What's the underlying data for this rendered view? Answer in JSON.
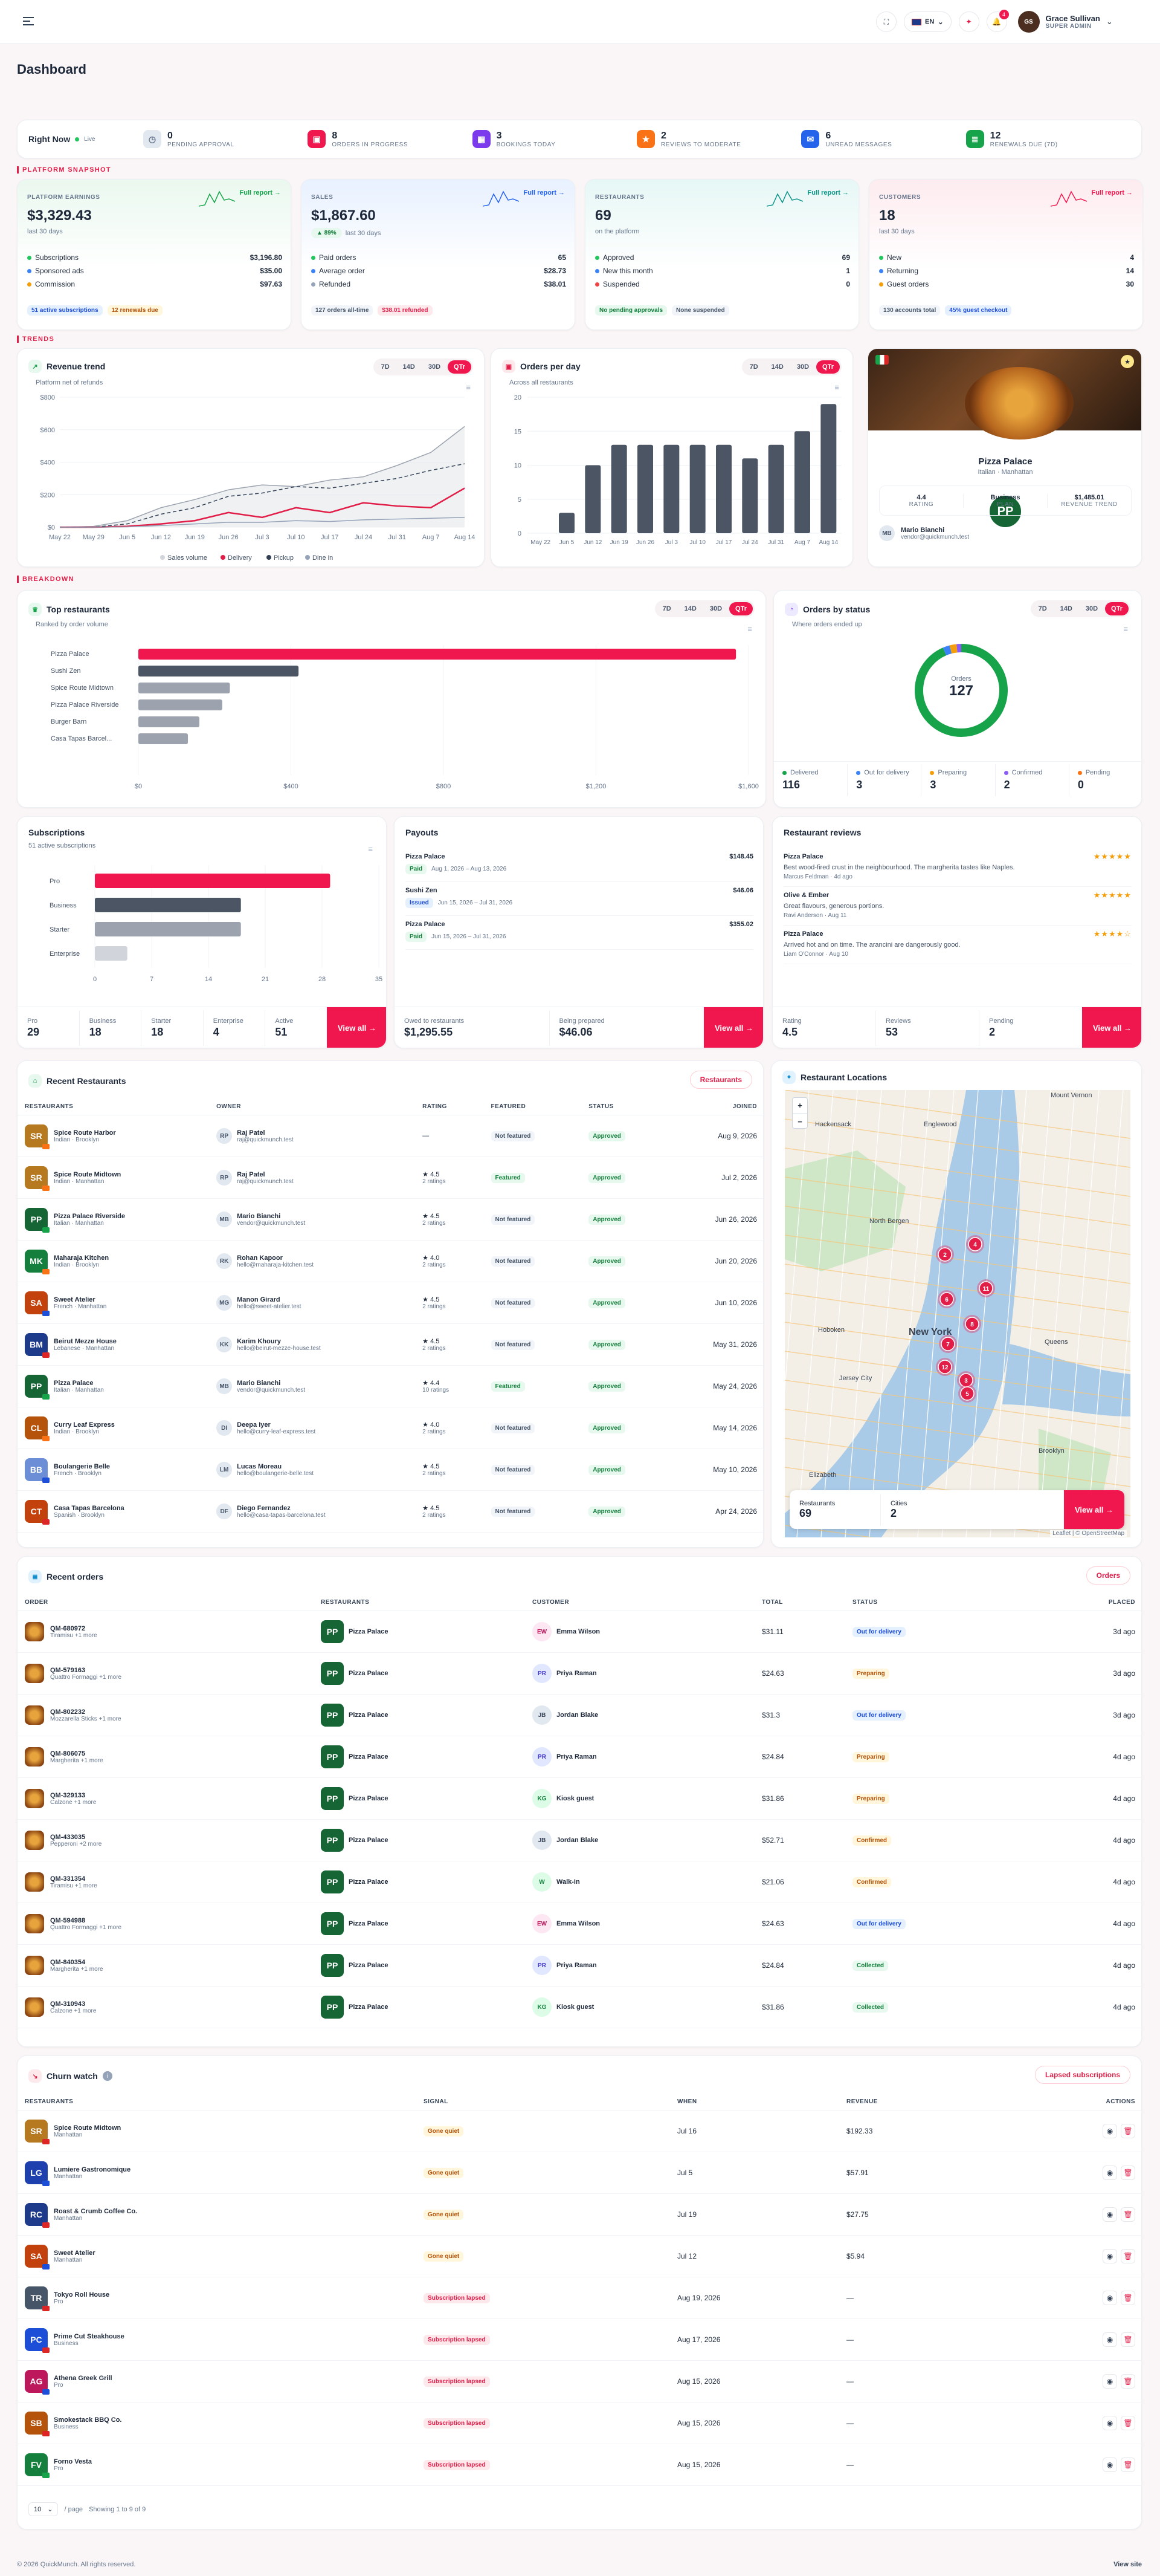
{
  "header": {
    "lang": "EN",
    "notif_count": "4",
    "user_name": "Grace Sullivan",
    "user_role": "SUPER ADMIN"
  },
  "page_title": "Dashboard",
  "right_now": {
    "label": "Right Now",
    "live": "Live",
    "items": [
      {
        "count": "0",
        "label": "PENDING APPROVAL",
        "color": "#e2e8f0",
        "icon": "clock-icon"
      },
      {
        "count": "8",
        "label": "ORDERS IN PROGRESS",
        "color": "#f0174e",
        "icon": "bag-icon"
      },
      {
        "count": "3",
        "label": "BOOKINGS TODAY",
        "color": "#7c3aed",
        "icon": "calendar-icon"
      },
      {
        "count": "2",
        "label": "REVIEWS TO MODERATE",
        "color": "#f97316",
        "icon": "star-icon"
      },
      {
        "count": "6",
        "label": "UNREAD MESSAGES",
        "color": "#2563eb",
        "icon": "message-icon"
      },
      {
        "count": "12",
        "label": "RENEWALS DUE (7D)",
        "color": "#16a34a",
        "icon": "receipt-icon"
      }
    ]
  },
  "sections": {
    "snapshot": "PLATFORM SNAPSHOT",
    "trends": "TRENDS",
    "breakdown": "BREAKDOWN"
  },
  "snapshot": [
    {
      "label": "PLATFORM EARNINGS",
      "value": "$3,329.43",
      "sub": "last 30 days",
      "link": "Full report →",
      "rows": [
        [
          "Subscriptions",
          "$3,196.80",
          "#22c55e"
        ],
        [
          "Sponsored ads",
          "$35.00",
          "#3b82f6"
        ],
        [
          "Commission",
          "$97.63",
          "#f59e0b"
        ]
      ],
      "chips": [
        "51 active subscriptions",
        "12 renewals due"
      ],
      "color": "#16a34a"
    },
    {
      "label": "SALES",
      "value": "$1,867.60",
      "delta": "▲ 89%",
      "sub": "last 30 days",
      "link": "Full report →",
      "rows": [
        [
          "Paid orders",
          "65",
          "#22c55e"
        ],
        [
          "Average order",
          "$28.73",
          "#3b82f6"
        ],
        [
          "Refunded",
          "$38.01",
          "#94a3b8"
        ]
      ],
      "chips": [
        "127 orders all-time",
        "$38.01 refunded"
      ],
      "color": "#2563eb"
    },
    {
      "label": "RESTAURANTS",
      "value": "69",
      "sub": "on the platform",
      "link": "Full report →",
      "rows": [
        [
          "Approved",
          "69",
          "#22c55e"
        ],
        [
          "New this month",
          "1",
          "#3b82f6"
        ],
        [
          "Suspended",
          "0",
          "#ef4444"
        ]
      ],
      "chips": [
        "No pending approvals",
        "None suspended"
      ],
      "color": "#0d9488"
    },
    {
      "label": "CUSTOMERS",
      "value": "18",
      "sub": "last 30 days",
      "link": "Full report →",
      "rows": [
        [
          "New",
          "4",
          "#22c55e"
        ],
        [
          "Returning",
          "14",
          "#3b82f6"
        ],
        [
          "Guest orders",
          "30",
          "#f59e0b"
        ]
      ],
      "chips": [
        "130 accounts total",
        "45% guest checkout"
      ],
      "color": "#f0174e"
    }
  ],
  "revenue": {
    "title": "Revenue trend",
    "sub": "Platform net of refunds",
    "tabs": [
      "7D",
      "14D",
      "30D",
      "QTr"
    ]
  },
  "orders_day": {
    "title": "Orders per day",
    "sub": "Across all restaurants",
    "tabs": [
      "7D",
      "14D",
      "30D",
      "QTr"
    ]
  },
  "chart_data": [
    {
      "type": "line",
      "title": "Revenue trend",
      "x": [
        "May 22",
        "May 29",
        "Jun 5",
        "Jun 12",
        "Jun 19",
        "Jun 26",
        "Jul 3",
        "Jul 10",
        "Jul 17",
        "Jul 24",
        "Jul 31",
        "Aug 7",
        "Aug 14"
      ],
      "yticks": [
        "$0",
        "$200",
        "$400",
        "$600",
        "$800"
      ],
      "ylim": [
        0,
        800
      ],
      "series": [
        {
          "name": "Sales volume",
          "values": [
            0,
            5,
            40,
            120,
            170,
            230,
            260,
            250,
            290,
            310,
            380,
            460,
            620
          ]
        },
        {
          "name": "Delivery",
          "values": [
            0,
            0,
            5,
            20,
            40,
            90,
            60,
            120,
            90,
            150,
            130,
            120,
            240
          ]
        },
        {
          "name": "Pickup",
          "values": [
            0,
            0,
            20,
            80,
            120,
            190,
            210,
            250,
            240,
            270,
            300,
            350,
            390
          ]
        },
        {
          "name": "Dine in",
          "values": [
            0,
            0,
            2,
            10,
            20,
            30,
            30,
            40,
            35,
            45,
            50,
            55,
            60
          ]
        }
      ],
      "legend": "bottom"
    },
    {
      "type": "bar",
      "title": "Orders per day",
      "categories": [
        "May 22",
        "Jun 5",
        "Jun 12",
        "Jun 19",
        "Jun 26",
        "Jul 3",
        "Jul 10",
        "Jul 17",
        "Jul 24",
        "Jul 31",
        "Aug 7",
        "Aug 14"
      ],
      "values": [
        0,
        3,
        10,
        13,
        13,
        13,
        13,
        13,
        11,
        13,
        15,
        19
      ],
      "yticks": [
        "0",
        "5",
        "10",
        "15",
        "20"
      ],
      "ylim": [
        0,
        20
      ]
    },
    {
      "type": "bar",
      "title": "Top restaurants",
      "categories": [
        "Pizza Palace",
        "Sushi Zen",
        "Spice Route Midtown",
        "Pizza Palace Riverside",
        "Burger Barn",
        "Casa Tapas Barcel..."
      ],
      "values": [
        1567,
        420,
        240,
        220,
        160,
        130
      ],
      "xticks": [
        "$0",
        "$400",
        "$800",
        "$1,200",
        "$1,600"
      ],
      "xlim": [
        0,
        1600
      ]
    },
    {
      "type": "pie",
      "title": "Orders by status",
      "center_label": "Orders",
      "center_value": "127",
      "slices": [
        {
          "name": "Delivered",
          "value": 116
        },
        {
          "name": "Out for delivery",
          "value": 3
        },
        {
          "name": "Preparing",
          "value": 3
        },
        {
          "name": "Confirmed",
          "value": 2
        },
        {
          "name": "Pending",
          "value": 0
        }
      ]
    },
    {
      "type": "bar",
      "title": "Subscriptions",
      "categories": [
        "Pro",
        "Business",
        "Starter",
        "Enterprise"
      ],
      "values": [
        29,
        18,
        18,
        4
      ],
      "xticks": [
        "0",
        "7",
        "14",
        "21",
        "28",
        "35"
      ],
      "xlim": [
        0,
        35
      ]
    }
  ],
  "featured": {
    "name": "Pizza Palace",
    "sub": "Italian · Manhattan",
    "stats": [
      [
        "4.4",
        "RATING"
      ],
      [
        "Business",
        "PLAN"
      ],
      [
        "$1,485.01",
        "REVENUE TREND"
      ]
    ],
    "owner": "Mario Bianchi",
    "email": "vendor@quickmunch.test"
  },
  "top": {
    "title": "Top restaurants",
    "sub": "Ranked by order volume",
    "tabs": [
      "7D",
      "14D",
      "30D",
      "QTr"
    ]
  },
  "status": {
    "title": "Orders by status",
    "sub": "Where orders ended up",
    "tabs": [
      "7D",
      "14D",
      "30D",
      "QTr"
    ],
    "items": [
      [
        "Delivered",
        "116",
        "#16a34a"
      ],
      [
        "Out for delivery",
        "3",
        "#3b82f6"
      ],
      [
        "Preparing",
        "3",
        "#f59e0b"
      ],
      [
        "Confirmed",
        "2",
        "#8b5cf6"
      ],
      [
        "Pending",
        "0",
        "#f97316"
      ]
    ]
  },
  "subs": {
    "title": "Subscriptions",
    "sub": "51 active subscriptions",
    "stats": [
      [
        "Pro",
        "29"
      ],
      [
        "Business",
        "18"
      ],
      [
        "Starter",
        "18"
      ],
      [
        "Enterprise",
        "4"
      ],
      [
        "Active",
        "51"
      ]
    ],
    "view": "View all →"
  },
  "payouts": {
    "title": "Payouts",
    "items": [
      {
        "name": "Pizza Palace",
        "amount": "$148.45",
        "status": "Paid",
        "range": "Aug 1, 2026 – Aug 13, 2026"
      },
      {
        "name": "Sushi Zen",
        "amount": "$46.06",
        "status": "Issued",
        "range": "Jun 15, 2026 – Jul 31, 2026"
      },
      {
        "name": "Pizza Palace",
        "amount": "$355.02",
        "status": "Paid",
        "range": "Jun 15, 2026 – Jul 31, 2026"
      }
    ],
    "stats": [
      [
        "Owed to restaurants",
        "$1,295.55"
      ],
      [
        "Being prepared",
        "$46.06"
      ]
    ],
    "view": "View all →"
  },
  "reviews": {
    "title": "Restaurant reviews",
    "items": [
      {
        "name": "Pizza Palace",
        "text": "Best wood-fired crust in the neighbourhood. The margherita tastes like Naples.",
        "by": "Marcus Feldman · 4d ago",
        "stars": "★★★★★"
      },
      {
        "name": "Olive & Ember",
        "text": "Great flavours, generous portions.",
        "by": "Ravi Anderson · Aug 11",
        "stars": "★★★★★"
      },
      {
        "name": "Pizza Palace",
        "text": "Arrived hot and on time. The arancini are dangerously good.",
        "by": "Liam O'Connor · Aug 10",
        "stars": "★★★★☆"
      }
    ],
    "stats": [
      [
        "Rating",
        "4.5"
      ],
      [
        "Reviews",
        "53"
      ],
      [
        "Pending",
        "2"
      ]
    ],
    "view": "View all →"
  },
  "recent_rest": {
    "title": "Recent Restaurants",
    "button": "Restaurants",
    "cols": [
      "RESTAURANTS",
      "OWNER",
      "RATING",
      "FEATURED",
      "STATUS",
      "JOINED"
    ],
    "rows": [
      [
        "SR",
        "#b7791f",
        "Spice Route Harbor",
        "Indian · Brooklyn",
        "Raj Patel",
        "raj@quickmunch.test",
        "—",
        "",
        "Not featured",
        "Approved",
        "Aug 9, 2026"
      ],
      [
        "SR",
        "#b7791f",
        "Spice Route Midtown",
        "Indian · Manhattan",
        "Raj Patel",
        "raj@quickmunch.test",
        "★ 4.5",
        "2 ratings",
        "Featured",
        "Approved",
        "Jul 2, 2026"
      ],
      [
        "PP",
        "#166534",
        "Pizza Palace Riverside",
        "Italian · Manhattan",
        "Mario Bianchi",
        "vendor@quickmunch.test",
        "★ 4.5",
        "2 ratings",
        "Not featured",
        "Approved",
        "Jun 26, 2026"
      ],
      [
        "MK",
        "#15803d",
        "Maharaja Kitchen",
        "Indian · Brooklyn",
        "Rohan Kapoor",
        "hello@maharaja-kitchen.test",
        "★ 4.0",
        "2 ratings",
        "Not featured",
        "Approved",
        "Jun 20, 2026"
      ],
      [
        "SA",
        "#c2410c",
        "Sweet Atelier",
        "French · Manhattan",
        "Manon Girard",
        "hello@sweet-atelier.test",
        "★ 4.5",
        "2 ratings",
        "Not featured",
        "Approved",
        "Jun 10, 2026"
      ],
      [
        "BM",
        "#1e3a8a",
        "Beirut Mezze House",
        "Lebanese · Manhattan",
        "Karim Khoury",
        "hello@beirut-mezze-house.test",
        "★ 4.5",
        "2 ratings",
        "Not featured",
        "Approved",
        "May 31, 2026"
      ],
      [
        "PP",
        "#166534",
        "Pizza Palace",
        "Italian · Manhattan",
        "Mario Bianchi",
        "vendor@quickmunch.test",
        "★ 4.4",
        "10 ratings",
        "Featured",
        "Approved",
        "May 24, 2026"
      ],
      [
        "CL",
        "#b45309",
        "Curry Leaf Express",
        "Indian · Brooklyn",
        "Deepa Iyer",
        "hello@curry-leaf-express.test",
        "★ 4.0",
        "2 ratings",
        "Not featured",
        "Approved",
        "May 14, 2026"
      ],
      [
        "BB",
        "#6b8ed6",
        "Boulangerie Belle",
        "French · Brooklyn",
        "Lucas Moreau",
        "hello@boulangerie-belle.test",
        "★ 4.5",
        "2 ratings",
        "Not featured",
        "Approved",
        "May 10, 2026"
      ],
      [
        "CT",
        "#c2410c",
        "Casa Tapas Barcelona",
        "Spanish · Brooklyn",
        "Diego Fernandez",
        "hello@casa-tapas-barcelona.test",
        "★ 4.5",
        "2 ratings",
        "Not featured",
        "Approved",
        "Apr 24, 2026"
      ]
    ]
  },
  "map": {
    "title": "Restaurant Locations",
    "labels": [
      "Mount Vernon",
      "Hackensack",
      "Englewood",
      "North Bergen",
      "Hoboken",
      "New York",
      "Jersey City",
      "Elizabeth",
      "Queens",
      "Brooklyn"
    ],
    "clusters": [
      "4",
      "2",
      "11",
      "6",
      "8",
      "7",
      "12",
      "3",
      "5"
    ],
    "stats": [
      [
        "Restaurants",
        "69"
      ],
      [
        "Cities",
        "2"
      ]
    ],
    "view": "View all →",
    "attrib": "Leaflet | © OpenStreetMap"
  },
  "orders": {
    "title": "Recent orders",
    "button": "Orders",
    "cols": [
      "ORDER",
      "RESTAURANTS",
      "CUSTOMER",
      "TOTAL",
      "STATUS",
      "PLACED"
    ],
    "rows": [
      [
        "QM-680972",
        "Tiramisu +1 more",
        "Pizza Palace",
        "EW",
        "Emma Wilson",
        "$31.11",
        "Out for delivery",
        "3d ago"
      ],
      [
        "QM-579163",
        "Quattro Formaggi +1 more",
        "Pizza Palace",
        "PR",
        "Priya Raman",
        "$24.63",
        "Preparing",
        "3d ago"
      ],
      [
        "QM-802232",
        "Mozzarella Sticks +1 more",
        "Pizza Palace",
        "JB",
        "Jordan Blake",
        "$31.3",
        "Out for delivery",
        "3d ago"
      ],
      [
        "QM-806075",
        "Margherita +1 more",
        "Pizza Palace",
        "PR",
        "Priya Raman",
        "$24.84",
        "Preparing",
        "4d ago"
      ],
      [
        "QM-329133",
        "Calzone +1 more",
        "Pizza Palace",
        "KG",
        "Kiosk guest",
        "$31.86",
        "Preparing",
        "4d ago"
      ],
      [
        "QM-433035",
        "Pepperoni +2 more",
        "Pizza Palace",
        "JB",
        "Jordan Blake",
        "$52.71",
        "Confirmed",
        "4d ago"
      ],
      [
        "QM-331354",
        "Tiramisu +1 more",
        "Pizza Palace",
        "W",
        "Walk-in",
        "$21.06",
        "Confirmed",
        "4d ago"
      ],
      [
        "QM-594988",
        "Quattro Formaggi +1 more",
        "Pizza Palace",
        "EW",
        "Emma Wilson",
        "$24.63",
        "Out for delivery",
        "4d ago"
      ],
      [
        "QM-840354",
        "Margherita +1 more",
        "Pizza Palace",
        "PR",
        "Priya Raman",
        "$24.84",
        "Collected",
        "4d ago"
      ],
      [
        "QM-310943",
        "Calzone +1 more",
        "Pizza Palace",
        "KG",
        "Kiosk guest",
        "$31.86",
        "Collected",
        "4d ago"
      ]
    ]
  },
  "churn": {
    "title": "Churn watch",
    "button": "Lapsed subscriptions",
    "cols": [
      "RESTAURANTS",
      "SIGNAL",
      "WHEN",
      "REVENUE",
      "ACTIONS"
    ],
    "rows": [
      [
        "SR",
        "#b7791f",
        "Spice Route Midtown",
        "Manhattan",
        "Gone quiet",
        "Jul 16",
        "$192.33"
      ],
      [
        "LG",
        "#1e40af",
        "Lumiere Gastronomique",
        "Manhattan",
        "Gone quiet",
        "Jul 5",
        "$57.91"
      ],
      [
        "RC",
        "#1e3a8a",
        "Roast & Crumb Coffee Co.",
        "Manhattan",
        "Gone quiet",
        "Jul 19",
        "$27.75"
      ],
      [
        "SA",
        "#c2410c",
        "Sweet Atelier",
        "Manhattan",
        "Gone quiet",
        "Jul 12",
        "$5.94"
      ],
      [
        "TR",
        "#475569",
        "Tokyo Roll House",
        "Pro",
        "Subscription lapsed",
        "Aug 19, 2026",
        "—"
      ],
      [
        "PC",
        "#1d4ed8",
        "Prime Cut Steakhouse",
        "Business",
        "Subscription lapsed",
        "Aug 17, 2026",
        "—"
      ],
      [
        "AG",
        "#be185d",
        "Athena Greek Grill",
        "Pro",
        "Subscription lapsed",
        "Aug 15, 2026",
        "—"
      ],
      [
        "SB",
        "#b45309",
        "Smokestack BBQ Co.",
        "Business",
        "Subscription lapsed",
        "Aug 15, 2026",
        "—"
      ],
      [
        "FV",
        "#15803d",
        "Forno Vesta",
        "Pro",
        "Subscription lapsed",
        "Aug 15, 2026",
        "—"
      ]
    ],
    "per_page": "10",
    "per_page_label": "/ page",
    "showing": "Showing 1 to 9 of 9"
  },
  "footer": {
    "copy": "© 2026 QuickMunch. All rights reserved.",
    "link": "View site"
  }
}
